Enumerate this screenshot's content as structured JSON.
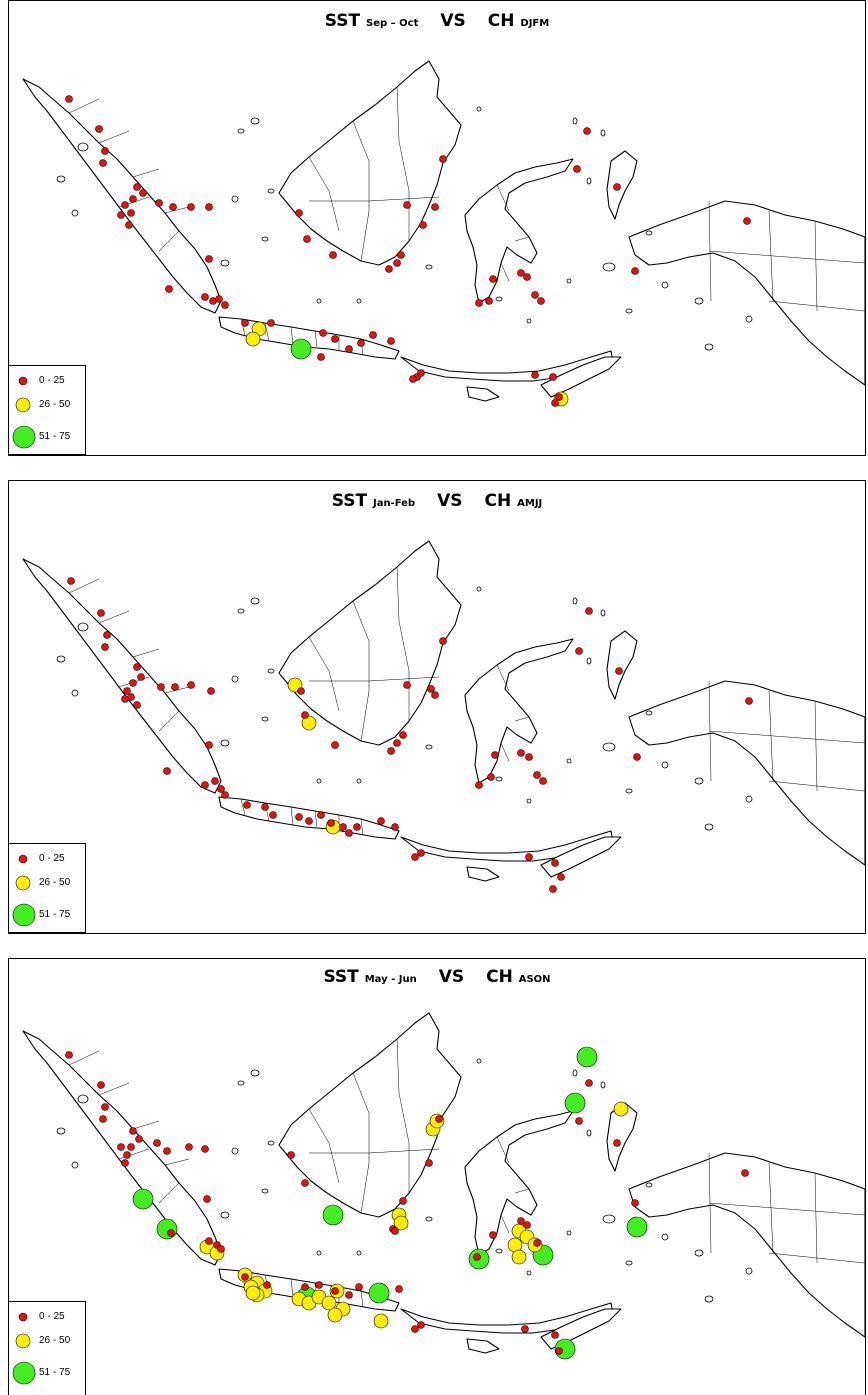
{
  "legend": {
    "classes": [
      {
        "label": "0 - 25",
        "color": "#e81010",
        "size": "small"
      },
      {
        "label": "26 - 50",
        "color": "#ffee00",
        "size": "medium"
      },
      {
        "label": "51 - 75",
        "color": "#44ee22",
        "size": "large"
      }
    ]
  },
  "colors": {
    "outline": "#000000",
    "class_0_25": "#e81010",
    "class_26_50": "#ffee00",
    "class_51_75": "#44ee22"
  },
  "panels": [
    {
      "title_main_1": "SST",
      "title_sub_1": "Sep – Oct",
      "title_vs": "VS",
      "title_main_2": "CH",
      "title_sub_2": "DJFM"
    },
    {
      "title_main_1": "SST",
      "title_sub_1": "Jan-Feb",
      "title_vs": "VS",
      "title_main_2": "CH",
      "title_sub_2": "AMJJ"
    },
    {
      "title_main_1": "SST",
      "title_sub_1": "May - Jun",
      "title_vs": "VS",
      "title_main_2": "CH",
      "title_sub_2": "ASON"
    }
  ]
}
